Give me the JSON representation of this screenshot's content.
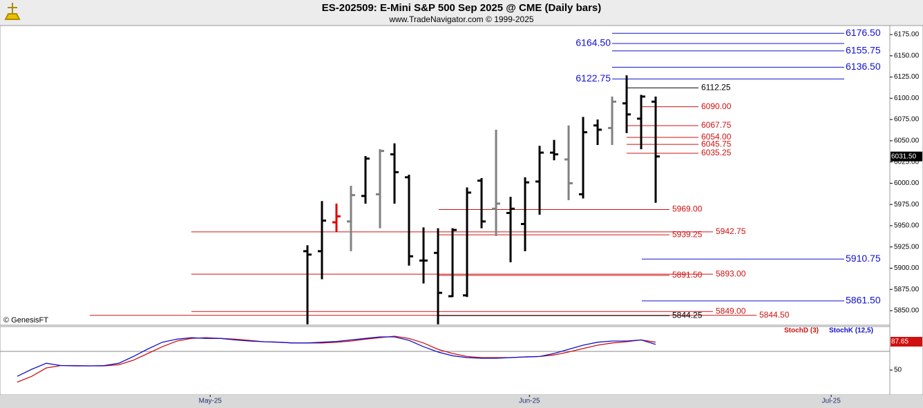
{
  "chart_data": [
    {
      "type": "ohlc",
      "title": "ES-202509:  E-Mini S&P 500 Sep 2025 @ CME  (Daily bars)",
      "subtitle": "www.TradeNavigator.com © 1999-2025",
      "copyright": "© GenesisFT",
      "xlim": [
        -1.19,
        60.14
      ],
      "ylim": [
        5833.75,
        6185.6
      ],
      "yticks": [
        {
          "value": 6175,
          "label": "6175.00"
        },
        {
          "value": 6150,
          "label": "6150.00"
        },
        {
          "value": 6125,
          "label": "6125.00"
        },
        {
          "value": 6100,
          "label": "6100.00"
        },
        {
          "value": 6075,
          "label": "6075.00"
        },
        {
          "value": 6050,
          "label": "6050.00"
        },
        {
          "value": 6025,
          "label": "6025.00"
        },
        {
          "value": 6000,
          "label": "6000.00"
        },
        {
          "value": 5975,
          "label": "5975.00"
        },
        {
          "value": 5950,
          "label": "5950.00"
        },
        {
          "value": 5925,
          "label": "5925.00"
        },
        {
          "value": 5900,
          "label": "5900.00"
        },
        {
          "value": 5875,
          "label": "5875.00"
        },
        {
          "value": 5850,
          "label": "5850.00"
        }
      ],
      "last": {
        "value": 6031.5,
        "label": "6031.50"
      },
      "x": [
        20,
        21,
        22,
        23,
        24,
        25,
        26,
        27,
        28,
        29,
        30,
        31,
        32,
        33,
        34,
        35,
        36,
        37,
        38,
        39,
        40,
        41,
        42,
        43,
        44
      ],
      "open": [
        5920,
        5920,
        5954,
        5955,
        5985,
        5987,
        6034,
        6007,
        5909,
        5918,
        5867,
        5868,
        6003,
        5970,
        5965,
        5952,
        6002,
        6036,
        6028,
        5987,
        6068,
        6065,
        6094,
        6076,
        6096
      ],
      "high": [
        5927,
        5979,
        5976,
        5997,
        6032,
        6040,
        6047,
        6010,
        5948,
        5947,
        5947,
        5995,
        6006,
        6063,
        5984,
        6007,
        6044,
        6051,
        6068,
        6078,
        6075,
        6102,
        6127,
        6104,
        6102
      ],
      "low": [
        5834,
        5887,
        5943,
        5920,
        5976,
        5947,
        5976,
        5903,
        5882,
        5834,
        5866,
        5866,
        5947,
        5938,
        5907,
        5920,
        5963,
        6027,
        5980,
        5982,
        6045,
        6045,
        6059,
        6040,
        5977
      ],
      "close": [
        5916,
        5956,
        5961,
        5986,
        6029,
        6038,
        6013,
        5914,
        5909,
        5871,
        5945,
        5989,
        5955,
        5976,
        5970,
        6001,
        6036,
        6034,
        6000,
        6060,
        6063,
        6096,
        6081,
        6102,
        6031.5
      ],
      "colors": [
        "#000000",
        "#000000",
        "#e00000",
        "#808080",
        "#000000",
        "#808080",
        "#000000",
        "#000000",
        "#000000",
        "#000000",
        "#000000",
        "#000000",
        "#000000",
        "#808080",
        "#000000",
        "#000000",
        "#000000",
        "#000000",
        "#808080",
        "#000000",
        "#000000",
        "#808080",
        "#000000",
        "#000000",
        "#000000"
      ],
      "levels": [
        {
          "value": 6176.5,
          "label": "6176.50",
          "color": "#1010d0"
        },
        {
          "value": 6164.5,
          "label": "6164.50",
          "color": "#1010d0"
        },
        {
          "value": 6155.75,
          "label": "6155.75",
          "color": "#1010d0"
        },
        {
          "value": 6136.5,
          "label": "6136.50",
          "color": "#1010d0"
        },
        {
          "value": 6122.75,
          "label": "6122.75",
          "color": "#1010d0"
        },
        {
          "value": 6112.25,
          "label": "6112.25",
          "color": "#000000"
        },
        {
          "value": 6090,
          "label": "6090.00",
          "color": "#d01010"
        },
        {
          "value": 6067.75,
          "label": "6067.75",
          "color": "#d01010"
        },
        {
          "value": 6054,
          "label": "6054.00",
          "color": "#d01010"
        },
        {
          "value": 6045.75,
          "label": "6045.75",
          "color": "#d01010"
        },
        {
          "value": 6035.25,
          "label": "6035.25",
          "color": "#d01010"
        },
        {
          "value": 5969,
          "label": "5969.00",
          "color": "#d01010"
        },
        {
          "value": 5942.75,
          "label": "5942.75",
          "color": "#d01010"
        },
        {
          "value": 5939.25,
          "label": "5939.25",
          "color": "#d01010"
        },
        {
          "value": 5910.75,
          "label": "5910.75",
          "color": "#1010d0"
        },
        {
          "value": 5893,
          "label": "5893.00",
          "color": "#d01010"
        },
        {
          "value": 5891.5,
          "label": "5891.50",
          "color": "#d01010"
        },
        {
          "value": 5861.5,
          "label": "5861.50",
          "color": "#1010d0"
        },
        {
          "value": 5849,
          "label": "5849.00",
          "color": "#d01010"
        },
        {
          "value": 5844.5,
          "label": "5844.50",
          "color": "#d01010"
        },
        {
          "value": 5844.25,
          "label": "5844.25",
          "color": "#000000"
        }
      ]
    },
    {
      "type": "line",
      "xlim": [
        -1.19,
        60.14
      ],
      "ylim": [
        17,
        107.8
      ],
      "yticks": [
        50
      ],
      "xticks": [
        {
          "value": 13.3,
          "label": "May-25"
        },
        {
          "value": 35.3,
          "label": "Jun-25"
        },
        {
          "value": 56.1,
          "label": "Jul-25"
        }
      ],
      "last": {
        "value": 87.65,
        "label": "87.65"
      },
      "x": [
        0,
        1,
        2,
        3,
        4,
        5,
        6,
        7,
        8,
        9,
        10,
        11,
        12,
        13,
        14,
        15,
        16,
        17,
        18,
        19,
        20,
        21,
        22,
        23,
        24,
        25,
        26,
        27,
        28,
        29,
        30,
        31,
        32,
        33,
        34,
        35,
        36,
        37,
        38,
        39,
        40,
        41,
        42,
        43,
        44
      ],
      "series": [
        {
          "name": "StochD (3)",
          "color": "#d01010",
          "values": [
            34,
            41.7,
            52.8,
            56,
            56,
            55.5,
            55.5,
            57,
            63,
            72,
            81,
            88.5,
            92,
            93,
            92,
            91,
            89.5,
            87.6,
            87,
            86,
            86,
            86,
            87,
            88.5,
            91,
            93,
            95,
            92,
            86,
            77.5,
            72,
            68,
            66.5,
            66.5,
            66.5,
            67.4,
            68,
            70,
            74,
            78.5,
            83,
            86,
            87.6,
            90,
            87
          ]
        },
        {
          "name": "StochK (12,5)",
          "color": "#1010d0",
          "values": [
            41.7,
            51,
            59,
            56,
            55.5,
            55.5,
            56,
            59,
            68,
            78,
            87,
            91,
            93,
            92,
            92,
            90,
            88.5,
            87.6,
            87,
            86,
            86,
            87,
            88,
            90,
            92,
            94,
            94,
            89.5,
            81,
            74,
            69,
            66.5,
            65.6,
            65.6,
            66.5,
            67.4,
            68,
            72,
            77.5,
            83,
            87,
            88.5,
            88.5,
            90,
            84
          ]
        }
      ]
    }
  ]
}
